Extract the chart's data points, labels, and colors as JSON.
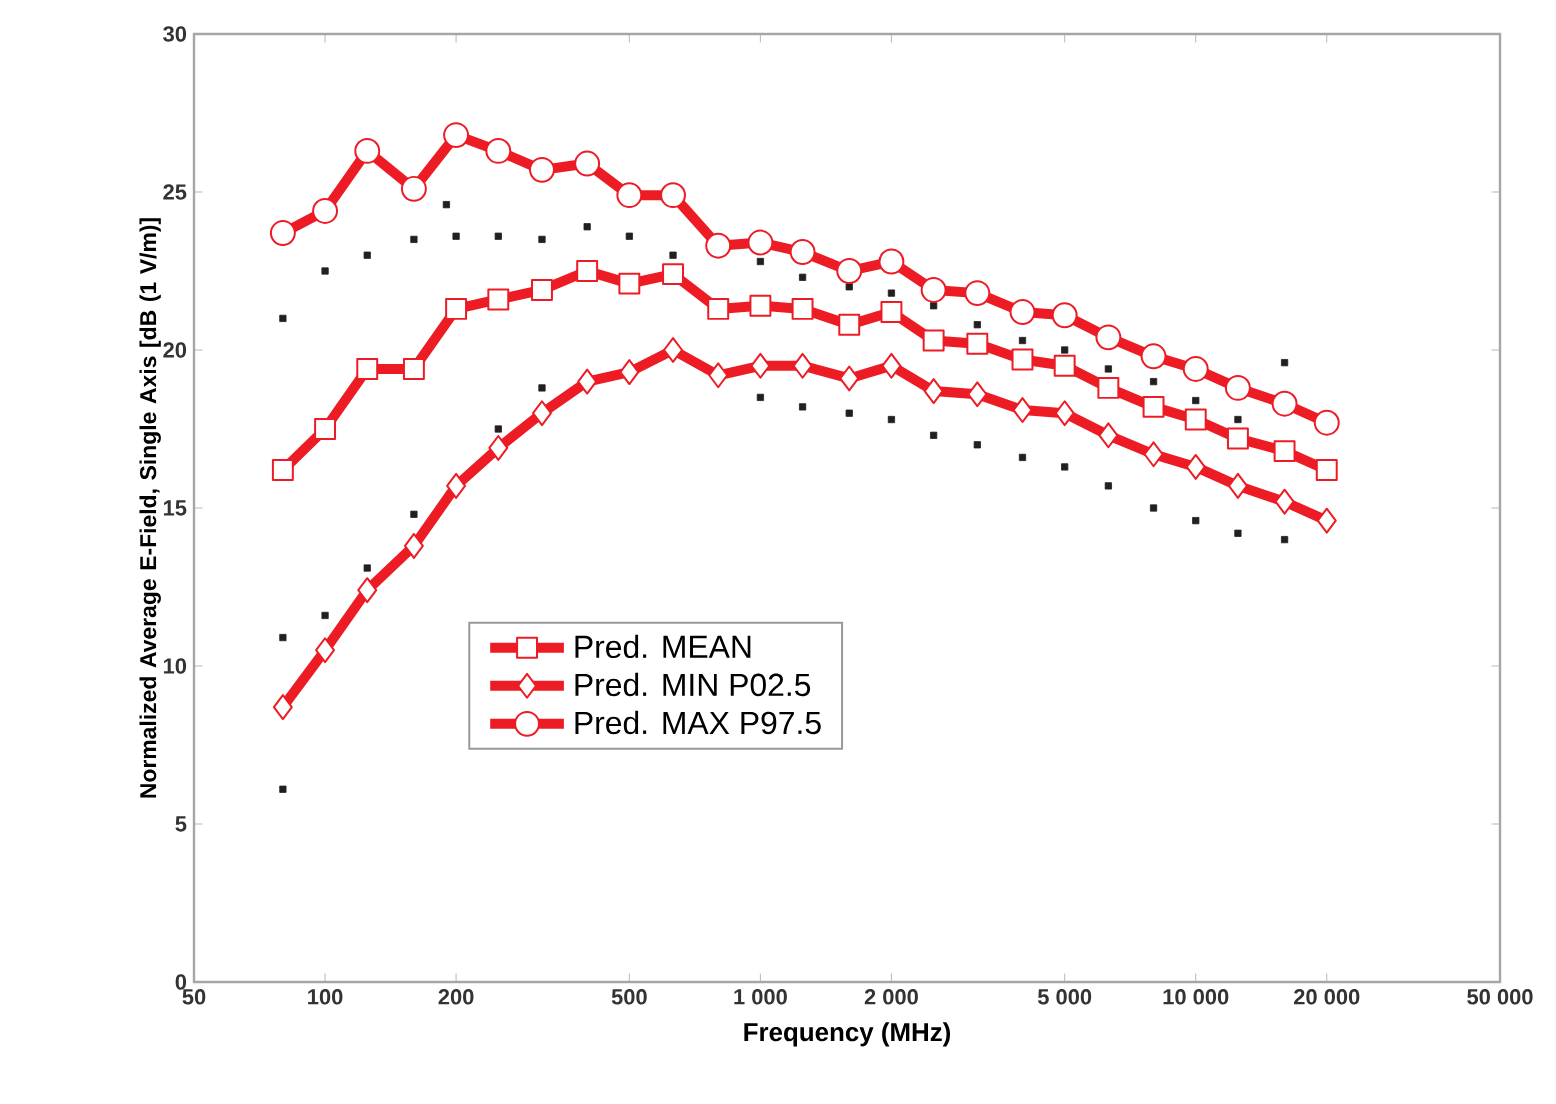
{
  "chart_data": {
    "type": "line",
    "xlabel": "Frequency (MHz)",
    "ylabel": "Normalized Average E-Field, Single Axis [dB (1 V/m)]",
    "log": "x",
    "xlim": [
      50,
      50000
    ],
    "xticks": [
      50,
      100,
      200,
      500,
      {
        "value": 1000,
        "label": "1 000"
      },
      {
        "value": 2000,
        "label": "2 000"
      },
      {
        "value": 5000,
        "label": "5 000"
      },
      {
        "value": 10000,
        "label": "10 000"
      },
      {
        "value": 20000,
        "label": "20 000"
      },
      {
        "value": 50000,
        "label": "50 000"
      }
    ],
    "ylim": [
      0,
      30
    ],
    "yticks": [
      0,
      5,
      10,
      15,
      20,
      25,
      30
    ],
    "grid": false,
    "legend": "left",
    "series": [
      {
        "type": "scatter",
        "marker": "square",
        "color": "#231f20",
        "x": [
          80,
          80,
          80,
          100,
          100,
          125,
          125,
          160,
          160,
          190,
          200,
          250,
          250,
          315,
          315,
          400,
          500,
          630,
          1000,
          1000,
          1250,
          1250,
          1600,
          1600,
          2000,
          2000,
          2500,
          2500,
          3150,
          3150,
          4000,
          4000,
          5000,
          5000,
          6300,
          6300,
          8000,
          8000,
          10000,
          10000,
          12500,
          12500,
          16000,
          16000
        ],
        "values": [
          6.1,
          10.9,
          21.0,
          11.6,
          22.5,
          13.1,
          23.0,
          14.8,
          23.5,
          24.6,
          23.6,
          17.5,
          23.6,
          18.8,
          23.5,
          23.9,
          23.6,
          23.0,
          18.5,
          22.8,
          18.2,
          22.3,
          18.0,
          22.0,
          17.8,
          21.8,
          17.3,
          21.4,
          17.0,
          20.8,
          16.6,
          20.3,
          16.3,
          20.0,
          15.7,
          19.4,
          15.0,
          19.0,
          14.6,
          18.4,
          14.2,
          17.8,
          14.0,
          19.6
        ]
      },
      {
        "name": "Pred. MEAN",
        "marker": "square",
        "color": "#ed1c24",
        "x": [
          80,
          100,
          125,
          160,
          200,
          250,
          315,
          400,
          500,
          630,
          800,
          1000,
          1250,
          1600,
          2000,
          2500,
          3150,
          4000,
          5000,
          6300,
          8000,
          10000,
          12500,
          16000,
          20000
        ],
        "values": [
          16.2,
          17.5,
          19.4,
          19.4,
          21.3,
          21.6,
          21.9,
          22.5,
          22.1,
          22.4,
          21.3,
          21.4,
          21.3,
          20.8,
          21.2,
          20.3,
          20.2,
          19.7,
          19.5,
          18.8,
          18.2,
          17.8,
          17.2,
          16.8,
          16.2
        ]
      },
      {
        "name": "Pred. MIN P02.5",
        "marker": "diamond",
        "color": "#ed1c24",
        "x": [
          80,
          100,
          125,
          160,
          200,
          250,
          315,
          400,
          500,
          630,
          800,
          1000,
          1250,
          1600,
          2000,
          2500,
          3150,
          4000,
          5000,
          6300,
          8000,
          10000,
          12500,
          16000,
          20000
        ],
        "values": [
          8.7,
          10.5,
          12.4,
          13.8,
          15.7,
          16.9,
          18.0,
          19.0,
          19.3,
          20.0,
          19.2,
          19.5,
          19.5,
          19.1,
          19.5,
          18.7,
          18.6,
          18.1,
          18.0,
          17.3,
          16.7,
          16.3,
          15.7,
          15.2,
          14.6
        ]
      },
      {
        "name": "Pred. MAX P97.5",
        "marker": "circle",
        "color": "#ed1c24",
        "x": [
          80,
          100,
          125,
          160,
          200,
          250,
          315,
          400,
          500,
          630,
          800,
          1000,
          1250,
          1600,
          2000,
          2500,
          3150,
          4000,
          5000,
          6300,
          8000,
          10000,
          12500,
          16000,
          20000
        ],
        "values": [
          23.7,
          24.4,
          26.3,
          25.1,
          26.8,
          26.3,
          25.7,
          25.9,
          24.9,
          24.9,
          23.3,
          23.4,
          23.1,
          22.5,
          22.8,
          21.9,
          21.8,
          21.2,
          21.1,
          20.4,
          19.8,
          19.4,
          18.8,
          18.3,
          17.7
        ]
      }
    ]
  }
}
